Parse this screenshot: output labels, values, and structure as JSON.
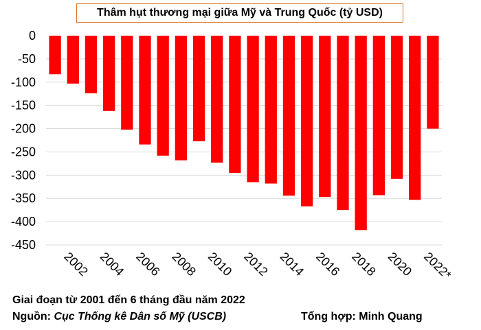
{
  "chart_data": {
    "type": "bar",
    "title": "Thâm hụt thương mại giữa Mỹ và Trung Quốc (tỷ USD)",
    "categories": [
      "2001",
      "2002",
      "2003",
      "2004",
      "2005",
      "2006",
      "2007",
      "2008",
      "2009",
      "2010",
      "2011",
      "2012",
      "2013",
      "2014",
      "2015",
      "2016",
      "2017",
      "2018",
      "2019",
      "2020",
      "2021",
      "2022*"
    ],
    "values": [
      -83,
      -103,
      -124,
      -162,
      -202,
      -234,
      -258,
      -268,
      -227,
      -273,
      -295,
      -315,
      -318,
      -344,
      -367,
      -347,
      -375,
      -418,
      -343,
      -308,
      -353,
      -200
    ],
    "x_tick_labels": [
      "2002",
      "2004",
      "2006",
      "2008",
      "2010",
      "2012",
      "2014",
      "2016",
      "2018",
      "2020",
      "2022*"
    ],
    "y_tick_labels": [
      "0",
      "-50",
      "-100",
      "-150",
      "-200",
      "-250",
      "-300",
      "-350",
      "-400",
      "-450"
    ],
    "y_ticks": [
      0,
      -50,
      -100,
      -150,
      -200,
      -250,
      -300,
      -350,
      -400,
      -450
    ],
    "ylim": [
      -450,
      0
    ],
    "grid": true,
    "bar_color": "#ff0000",
    "grid_color": "#d9d9d9"
  },
  "footer": {
    "period": "Giai đoạn từ 2001 đến 6 tháng đầu năm 2022",
    "source_label": "Nguồn:",
    "source_name": "Cục Thống kê Dân số Mỹ (USCB)",
    "compiled_by": "Tổng hợp: Minh Quang"
  }
}
